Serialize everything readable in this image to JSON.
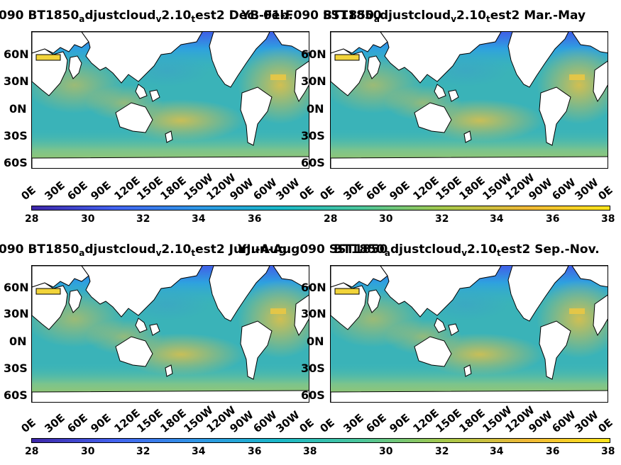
{
  "panels": [
    {
      "title_prefix": "090 BT1850",
      "title_sub_a": "a",
      "title_mid": "djustcloud",
      "title_sub_v": "v",
      "title_ver": "2.10",
      "title_sub_t": "t",
      "title_suffix": "est2 Dec.-Feb."
    },
    {
      "title_prefix": "BT1850",
      "title_sub_a": "a",
      "title_mid": "djustcloud",
      "title_sub_v": "v",
      "title_ver": "2.10",
      "title_sub_t": "t",
      "title_suffix": "est2 Mar.-May"
    },
    {
      "title_prefix": "090 BT1850",
      "title_sub_a": "a",
      "title_mid": "djustcloud",
      "title_sub_v": "v",
      "title_ver": "2.10",
      "title_sub_t": "t",
      "title_suffix": "est2 Jun.-Aug."
    },
    {
      "title_prefix": "BT1850",
      "title_sub_a": "a",
      "title_mid": "djustcloud",
      "title_sub_v": "v",
      "title_ver": "2.10",
      "title_sub_t": "t",
      "title_suffix": "est2 Sep.-Nov."
    }
  ],
  "overlap_text": {
    "top": "YB 01-F090 SST1850",
    "bottom": "YJun-Aug090 SST1850"
  },
  "lat_labels": [
    "60N",
    "30N",
    "0N",
    "30S",
    "60S"
  ],
  "lon_labels": [
    "0E",
    "30E",
    "60E",
    "90E",
    "120E",
    "150E",
    "180E",
    "150W",
    "120W",
    "90W",
    "60W",
    "30W",
    "0E"
  ],
  "colorbar": {
    "ticks": [
      "28",
      "30",
      "32",
      "34",
      "36",
      "38"
    ],
    "range": [
      28,
      38
    ],
    "colors": [
      "#3d26a8",
      "#4363f0",
      "#2f96e6",
      "#1ab8c8",
      "#4cc69a",
      "#a6c84a",
      "#f0b836",
      "#fde51b"
    ]
  },
  "colors": {
    "ocean_base": "#3ab3b8",
    "ocean_warm": "#e8c040",
    "ocean_cool": "#3f7ad9",
    "land": "#ffffff"
  }
}
